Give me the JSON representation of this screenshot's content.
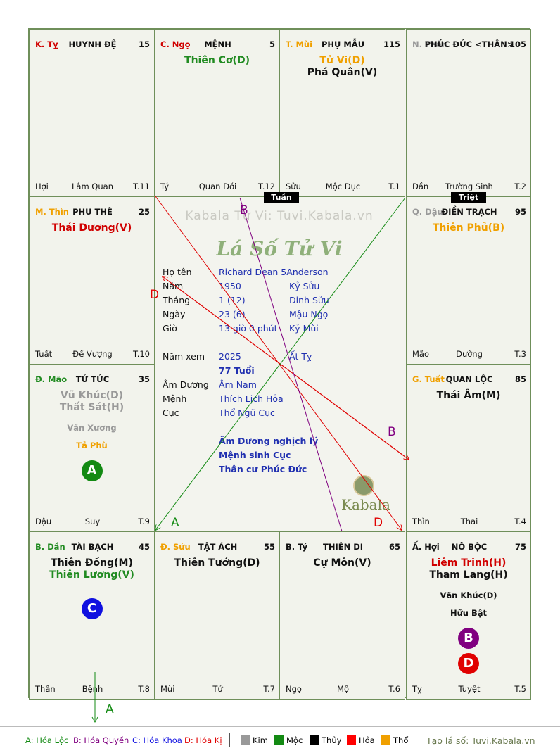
{
  "watermark": "Kabala Tử Vi: Tuvi.Kabala.vn",
  "center_title": "Lá Số Tử Vi",
  "logo_text": "Kabala",
  "tuan_label": "Tuần",
  "triet_label": "Triệt",
  "info": {
    "ho_ten_label": "Họ tên",
    "ho_ten": "Richard Dean 5Anderson",
    "nam_label": "Năm",
    "nam": "1950",
    "nam_can": "Kỷ Sửu",
    "thang_label": "Tháng",
    "thang": "1  (12)",
    "thang_can": "Đinh Sửu",
    "ngay_label": "Ngày",
    "ngay": "23  (6)",
    "ngay_can": "Mậu Ngọ",
    "gio_label": "Giờ",
    "gio": "13 giờ 0 phút",
    "gio_can": "Kỷ Mùi",
    "nam_xem_label": "Năm xem",
    "nam_xem": "2025",
    "nam_xem_can": "Ất Tỵ",
    "tuoi": "77 Tuổi",
    "am_duong_label": "Âm Dương",
    "am_duong": "Âm Nam",
    "menh_label": "Mệnh",
    "menh": "Thích Lịch Hỏa",
    "cuc_label": "Cục",
    "cuc": "Thổ Ngũ Cục",
    "note1": "Âm Dương nghịch lý",
    "note2": "Mệnh sinh Cục",
    "note3": "Thân cư Phúc Đức"
  },
  "arrow_labels": {
    "b_top": "B",
    "d_left": "D",
    "b_right": "B",
    "a_bottom": "A",
    "d_bottom": "D",
    "a_out": "A"
  },
  "cells": [
    {
      "can": "K. Tỵ",
      "can_color": "#d00000",
      "name": "HUYNH ĐỆ",
      "num": "15",
      "stars": [],
      "foot_l": "Hợi",
      "foot_c": "Lâm Quan",
      "foot_r": "T.11"
    },
    {
      "can": "C. Ngọ",
      "can_color": "#d00000",
      "name": "MỆNH",
      "num": "5",
      "stars": [
        {
          "t": "Thiên Cơ(D)",
          "c": "#228b22"
        }
      ],
      "foot_l": "Tý",
      "foot_c": "Quan Đới",
      "foot_r": "T.12"
    },
    {
      "can": "T. Mùi",
      "can_color": "#f0a000",
      "name": "PHỤ MẪU",
      "num": "115",
      "stars": [
        {
          "t": "Tử Vi(D)",
          "c": "#f0a000"
        },
        {
          "t": "Phá Quân(V)",
          "c": "#111111"
        }
      ],
      "foot_l": "Sửu",
      "foot_c": "Mộc Dục",
      "foot_r": "T.1"
    },
    {
      "can": "N. Thân",
      "can_color": "#999999",
      "name": "PHÚC ĐỨC <THÂN>",
      "num": "105",
      "stars": [],
      "foot_l": "Dần",
      "foot_c": "Trường Sinh",
      "foot_r": "T.2"
    },
    {
      "can": "M. Thìn",
      "can_color": "#f0a000",
      "name": "PHU THÊ",
      "num": "25",
      "stars": [
        {
          "t": "Thái Dương(V)",
          "c": "#d00000"
        }
      ],
      "foot_l": "Tuất",
      "foot_c": "Đế Vượng",
      "foot_r": "T.10"
    },
    {
      "can": "Q. Dậu",
      "can_color": "#999999",
      "name": "ĐIỀN TRẠCH",
      "num": "95",
      "stars": [
        {
          "t": "Thiên Phủ(B)",
          "c": "#f0a000"
        }
      ],
      "foot_l": "Mão",
      "foot_c": "Dưỡng",
      "foot_r": "T.3"
    },
    {
      "can": "Đ. Mão",
      "can_color": "#228b22",
      "name": "TỬ TỨC",
      "num": "35",
      "stars": [
        {
          "t": "Vũ Khúc(D)",
          "c": "#999999"
        },
        {
          "t": "Thất Sát(H)",
          "c": "#999999"
        }
      ],
      "minor": [
        {
          "t": "Văn Xương",
          "c": "#999999"
        },
        {
          "t": "Tả Phù",
          "c": "#f0a000"
        }
      ],
      "circles": [
        {
          "t": "A",
          "c": "#138a13"
        }
      ],
      "foot_l": "Dậu",
      "foot_c": "Suy",
      "foot_r": "T.9"
    },
    {
      "can": "G. Tuất",
      "can_color": "#f0a000",
      "name": "QUAN LỘC",
      "num": "85",
      "stars": [
        {
          "t": "Thái Âm(M)",
          "c": "#111111"
        }
      ],
      "foot_l": "Thìn",
      "foot_c": "Thai",
      "foot_r": "T.4"
    },
    {
      "can": "B. Dần",
      "can_color": "#228b22",
      "name": "TÀI BẠCH",
      "num": "45",
      "stars": [
        {
          "t": "Thiên Đồng(M)",
          "c": "#111111"
        },
        {
          "t": "Thiên Lương(V)",
          "c": "#228b22"
        }
      ],
      "circles": [
        {
          "t": "C",
          "c": "#1010e0"
        }
      ],
      "foot_l": "Thân",
      "foot_c": "Bệnh",
      "foot_r": "T.8"
    },
    {
      "can": "Đ. Sửu",
      "can_color": "#f0a000",
      "name": "TẬT ÁCH",
      "num": "55",
      "stars": [
        {
          "t": "Thiên Tướng(D)",
          "c": "#111111"
        }
      ],
      "foot_l": "Mùi",
      "foot_c": "Tử",
      "foot_r": "T.7"
    },
    {
      "can": "B. Tý",
      "can_color": "#111111",
      "name": "THIÊN DI",
      "num": "65",
      "stars": [
        {
          "t": "Cự Môn(V)",
          "c": "#111111"
        }
      ],
      "foot_l": "Ngọ",
      "foot_c": "Mộ",
      "foot_r": "T.6"
    },
    {
      "can": "Ấ. Hợi",
      "can_color": "#111111",
      "name": "NÔ BỘC",
      "num": "75",
      "stars": [
        {
          "t": "Liêm Trinh(H)",
          "c": "#d00000"
        },
        {
          "t": "Tham Lang(H)",
          "c": "#111111"
        }
      ],
      "minor": [
        {
          "t": "Văn Khúc(D)",
          "c": "#111111"
        },
        {
          "t": "Hữu Bật",
          "c": "#111111"
        }
      ],
      "circles": [
        {
          "t": "B",
          "c": "#800080"
        },
        {
          "t": "D",
          "c": "#e00000"
        }
      ],
      "foot_l": "Tỵ",
      "foot_c": "Tuyệt",
      "foot_r": "T.5"
    }
  ],
  "legend": {
    "a": "A: Hóa Lộc",
    "b": "B: Hóa Quyền",
    "c": "C: Hóa Khoa",
    "d": "D: Hóa Kị",
    "kim": "Kim",
    "moc": "Mộc",
    "thuy": "Thủy",
    "hoa": "Hỏa",
    "tho": "Thổ",
    "site": "Tạo lá số: Tuvi.Kabala.vn",
    "colors": {
      "kim": "#999999",
      "moc": "#138a13",
      "thuy": "#000000",
      "hoa": "#ff0000",
      "tho": "#f0a000"
    }
  }
}
